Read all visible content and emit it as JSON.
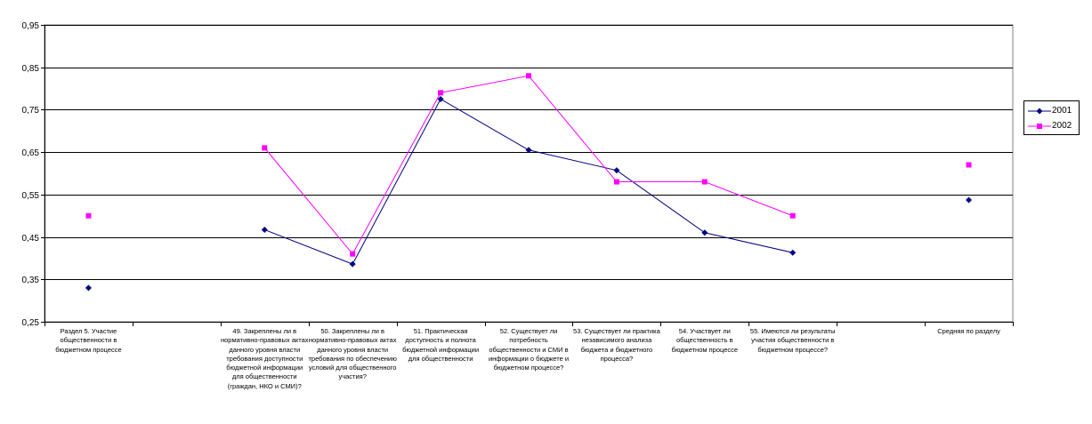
{
  "chart_data": {
    "type": "line",
    "title": "",
    "xlabel": "",
    "ylabel": "",
    "ylim": [
      0.25,
      0.95
    ],
    "yticks": [
      "0,25",
      "0,35",
      "0,45",
      "0,55",
      "0,65",
      "0,75",
      "0,85",
      "0,95"
    ],
    "grid": true,
    "legend_position": "right",
    "categories": [
      "Раздел 5. Участие общественности в бюджетном процессе",
      "",
      "49. Закреплены ли в нормативно-правовых актах данного уровня власти требования доступности бюджетной информации для общественности (граждан, НКО и СМИ)?",
      "50. Закреплены ли в нормативно-правовых актах данного уровня власти требования по обеспечению условий для общественного участия?",
      "51. Практическая доступность и полнота бюджетной информации для общественности",
      "52. Существует ли потребность общественности и СМИ в информации о бюджете и бюджетном процессе?",
      "53. Существует ли практика независимого анализа бюджета и бюджетного процесса?",
      "54. Участвует ли общественность в бюджетном процессе",
      "55. Имеются ли результаты участия общественности в бюджетном процессе?",
      "",
      "Средняя по разделу"
    ],
    "series": [
      {
        "name": "2001",
        "color": "#000080",
        "marker": "diamond",
        "values": [
          0.33,
          null,
          0.467,
          0.386,
          0.775,
          0.655,
          0.607,
          0.46,
          0.413,
          null,
          0.537
        ]
      },
      {
        "name": "2002",
        "color": "#ff00ff",
        "marker": "square",
        "values": [
          0.5,
          null,
          0.66,
          0.41,
          0.79,
          0.83,
          0.58,
          0.58,
          0.5,
          null,
          0.62
        ]
      }
    ]
  }
}
